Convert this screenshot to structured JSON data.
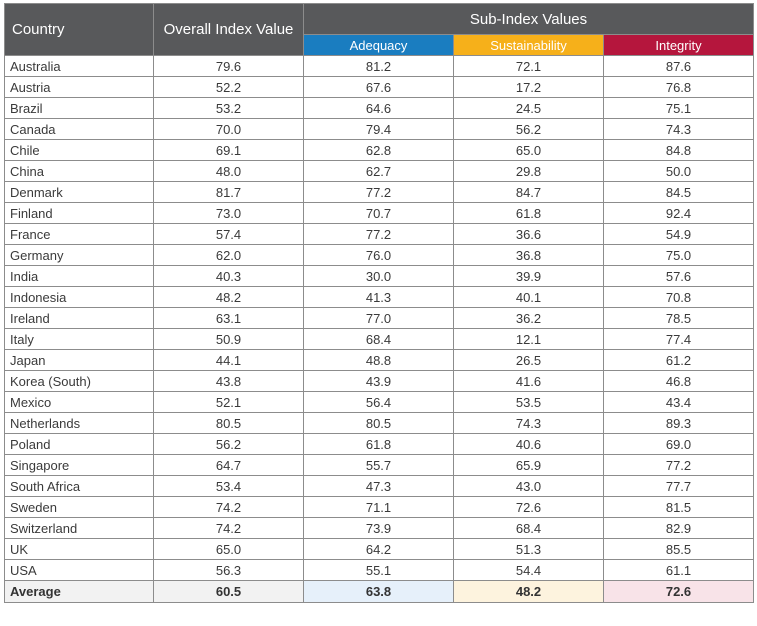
{
  "chart_data": {
    "type": "table",
    "headers": {
      "country": "Country",
      "overall": "Overall Index Value",
      "group": "Sub-Index Values",
      "adequacy": "Adequacy",
      "sustainability": "Sustainability",
      "integrity": "Integrity"
    },
    "rows": [
      [
        "Australia",
        "79.6",
        "81.2",
        "72.1",
        "87.6"
      ],
      [
        "Austria",
        "52.2",
        "67.6",
        "17.2",
        "76.8"
      ],
      [
        "Brazil",
        "53.2",
        "64.6",
        "24.5",
        "75.1"
      ],
      [
        "Canada",
        "70.0",
        "79.4",
        "56.2",
        "74.3"
      ],
      [
        "Chile",
        "69.1",
        "62.8",
        "65.0",
        "84.8"
      ],
      [
        "China",
        "48.0",
        "62.7",
        "29.8",
        "50.0"
      ],
      [
        "Denmark",
        "81.7",
        "77.2",
        "84.7",
        "84.5"
      ],
      [
        "Finland",
        "73.0",
        "70.7",
        "61.8",
        "92.4"
      ],
      [
        "France",
        "57.4",
        "77.2",
        "36.6",
        "54.9"
      ],
      [
        "Germany",
        "62.0",
        "76.0",
        "36.8",
        "75.0"
      ],
      [
        "India",
        "40.3",
        "30.0",
        "39.9",
        "57.6"
      ],
      [
        "Indonesia",
        "48.2",
        "41.3",
        "40.1",
        "70.8"
      ],
      [
        "Ireland",
        "63.1",
        "77.0",
        "36.2",
        "78.5"
      ],
      [
        "Italy",
        "50.9",
        "68.4",
        "12.1",
        "77.4"
      ],
      [
        "Japan",
        "44.1",
        "48.8",
        "26.5",
        "61.2"
      ],
      [
        "Korea (South)",
        "43.8",
        "43.9",
        "41.6",
        "46.8"
      ],
      [
        "Mexico",
        "52.1",
        "56.4",
        "53.5",
        "43.4"
      ],
      [
        "Netherlands",
        "80.5",
        "80.5",
        "74.3",
        "89.3"
      ],
      [
        "Poland",
        "56.2",
        "61.8",
        "40.6",
        "69.0"
      ],
      [
        "Singapore",
        "64.7",
        "55.7",
        "65.9",
        "77.2"
      ],
      [
        "South Africa",
        "53.4",
        "47.3",
        "43.0",
        "77.7"
      ],
      [
        "Sweden",
        "74.2",
        "71.1",
        "72.6",
        "81.5"
      ],
      [
        "Switzerland",
        "74.2",
        "73.9",
        "68.4",
        "82.9"
      ],
      [
        "UK",
        "65.0",
        "64.2",
        "51.3",
        "85.5"
      ],
      [
        "USA",
        "56.3",
        "55.1",
        "54.4",
        "61.1"
      ]
    ],
    "average": [
      "Average",
      "60.5",
      "63.8",
      "48.2",
      "72.6"
    ]
  },
  "colors": {
    "header_bg": "#58595b",
    "adequacy": "#1a7dc0",
    "sustainability": "#f6b01a",
    "integrity": "#b5163d"
  }
}
